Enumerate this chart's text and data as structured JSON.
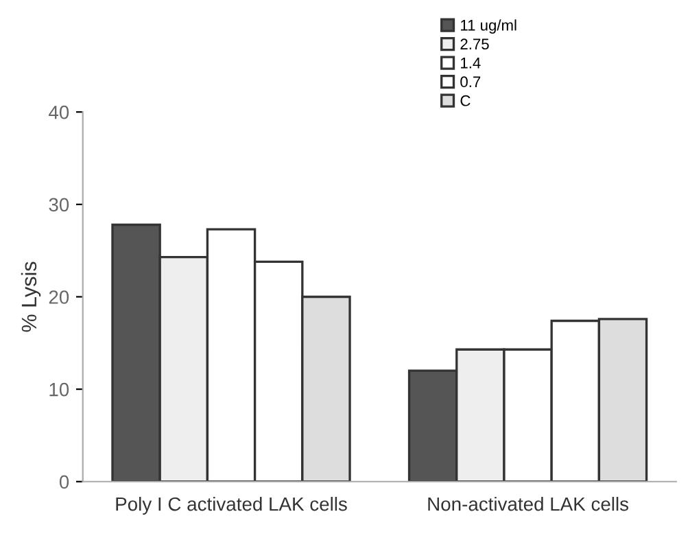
{
  "chart_data": {
    "type": "bar",
    "ylabel": "% Lysis",
    "categories": [
      "Poly I C activated LAK cells",
      "Non-activated LAK cells"
    ],
    "series": [
      {
        "name": "11 ug/ml",
        "color": "#555555",
        "values": [
          27.8,
          12.0
        ]
      },
      {
        "name": "2.75",
        "color": "#eeeeee",
        "values": [
          24.3,
          14.3
        ]
      },
      {
        "name": "1.4",
        "color": "#ffffff",
        "values": [
          27.3,
          14.3
        ]
      },
      {
        "name": "0.7",
        "color": "#ffffff",
        "values": [
          23.8,
          17.4
        ]
      },
      {
        "name": "C",
        "color": "#dddddd",
        "values": [
          20.0,
          17.6
        ]
      }
    ],
    "ylim": [
      0,
      40
    ],
    "yticks": [
      0,
      10,
      20,
      30,
      40
    ],
    "grid": false,
    "legend": "top right"
  }
}
